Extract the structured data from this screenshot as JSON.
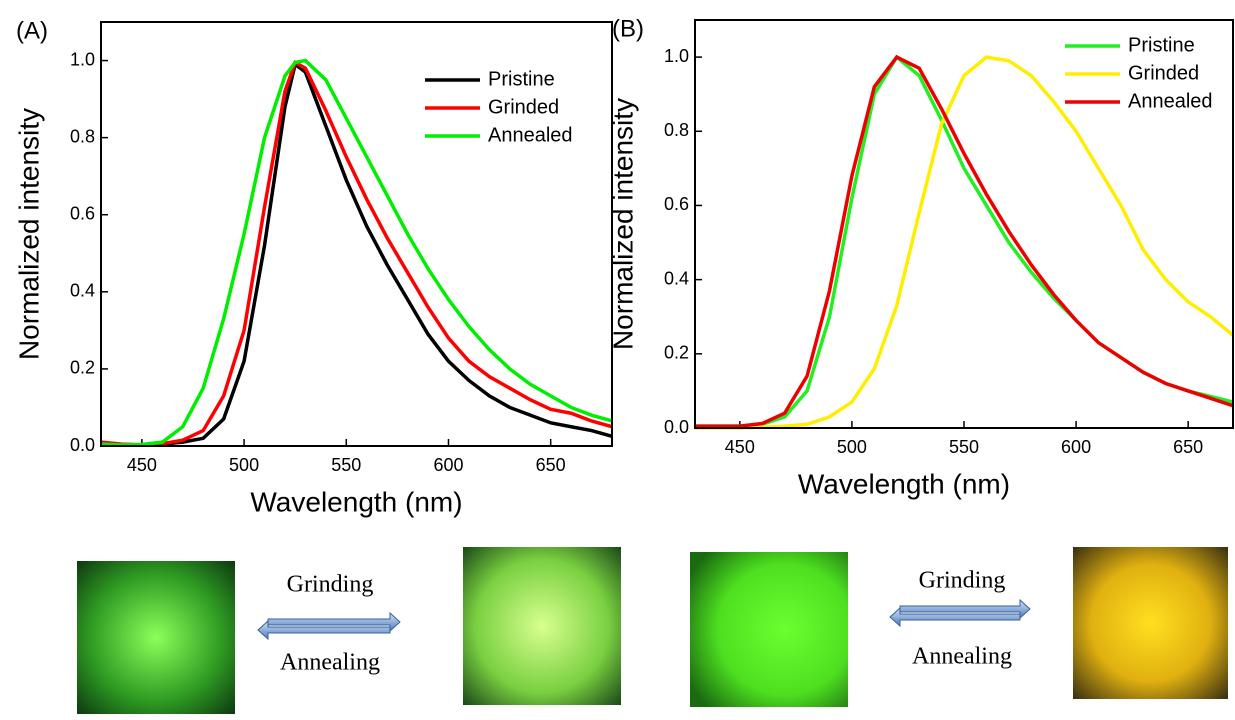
{
  "chart_data": [
    {
      "type": "line",
      "panel_label": "(A)",
      "xlabel": "Wavelength (nm)",
      "ylabel": "Normalized intensity",
      "xlim": [
        430,
        680
      ],
      "ylim": [
        0,
        1.1
      ],
      "xticks": [
        450,
        500,
        550,
        600,
        650
      ],
      "yticks": [
        {
          "value": 0,
          "label": "0.0"
        },
        0.2,
        0.4,
        0.6,
        0.8,
        {
          "value": 1,
          "label": "1.0"
        }
      ],
      "legend": "upper right",
      "x": [
        430,
        440,
        450,
        460,
        470,
        480,
        490,
        500,
        510,
        520,
        525,
        530,
        540,
        550,
        560,
        570,
        580,
        590,
        600,
        610,
        620,
        630,
        640,
        650,
        660,
        670,
        680
      ],
      "series": [
        {
          "name": "Pristine",
          "color": "#000000",
          "values": [
            0.005,
            0.003,
            0.003,
            0.005,
            0.01,
            0.02,
            0.07,
            0.22,
            0.52,
            0.88,
            0.99,
            0.97,
            0.83,
            0.69,
            0.57,
            0.47,
            0.38,
            0.29,
            0.22,
            0.17,
            0.13,
            0.1,
            0.08,
            0.06,
            0.05,
            0.04,
            0.025
          ]
        },
        {
          "name": "Grinded",
          "color": "#ff0000",
          "values": [
            0.01,
            0.005,
            0.003,
            0.006,
            0.015,
            0.04,
            0.13,
            0.3,
            0.62,
            0.92,
            0.995,
            0.98,
            0.87,
            0.75,
            0.64,
            0.54,
            0.45,
            0.36,
            0.28,
            0.22,
            0.18,
            0.15,
            0.12,
            0.095,
            0.085,
            0.065,
            0.05
          ]
        },
        {
          "name": "Annealed",
          "color": "#00ee00",
          "values": [
            0.005,
            0.003,
            0.004,
            0.01,
            0.05,
            0.15,
            0.33,
            0.55,
            0.8,
            0.96,
            0.995,
            1.0,
            0.95,
            0.85,
            0.75,
            0.65,
            0.55,
            0.46,
            0.38,
            0.31,
            0.25,
            0.2,
            0.16,
            0.13,
            0.1,
            0.08,
            0.065
          ]
        }
      ]
    },
    {
      "type": "line",
      "panel_label": "(B)",
      "xlabel": "Wavelength (nm)",
      "ylabel": "Normalized intensity",
      "xlim": [
        430,
        670
      ],
      "ylim": [
        0,
        1.1
      ],
      "xticks": [
        450,
        500,
        550,
        600,
        650
      ],
      "yticks": [
        {
          "value": 0,
          "label": "0.0"
        },
        0.2,
        0.4,
        0.6,
        0.8,
        {
          "value": 1,
          "label": "1.0"
        }
      ],
      "legend": "upper right",
      "x": [
        430,
        440,
        450,
        460,
        470,
        480,
        490,
        500,
        510,
        520,
        530,
        540,
        550,
        560,
        570,
        580,
        590,
        600,
        610,
        620,
        630,
        640,
        650,
        660,
        670
      ],
      "series": [
        {
          "name": "Pristine",
          "color": "#22ee22",
          "values": [
            0.005,
            0.005,
            0.005,
            0.01,
            0.03,
            0.1,
            0.3,
            0.62,
            0.9,
            1.0,
            0.95,
            0.83,
            0.7,
            0.6,
            0.5,
            0.42,
            0.35,
            0.29,
            0.23,
            0.19,
            0.15,
            0.12,
            0.1,
            0.085,
            0.07
          ]
        },
        {
          "name": "Grinded",
          "color": "#ffee00",
          "values": [
            0,
            0,
            0,
            0.002,
            0.005,
            0.01,
            0.03,
            0.07,
            0.16,
            0.33,
            0.58,
            0.82,
            0.95,
            1.0,
            0.99,
            0.95,
            0.88,
            0.8,
            0.7,
            0.6,
            0.48,
            0.4,
            0.34,
            0.3,
            0.25
          ]
        },
        {
          "name": "Annealed",
          "color": "#ee0000",
          "values": [
            0.005,
            0.005,
            0.005,
            0.012,
            0.04,
            0.14,
            0.37,
            0.68,
            0.92,
            1.0,
            0.97,
            0.86,
            0.74,
            0.63,
            0.53,
            0.44,
            0.36,
            0.29,
            0.23,
            0.19,
            0.15,
            0.12,
            0.1,
            0.08,
            0.06
          ]
        }
      ]
    }
  ],
  "photos": [
    {
      "top": "Grinding",
      "bottom": "Annealing"
    },
    {
      "top": "Grinding",
      "bottom": "Annealing"
    }
  ]
}
